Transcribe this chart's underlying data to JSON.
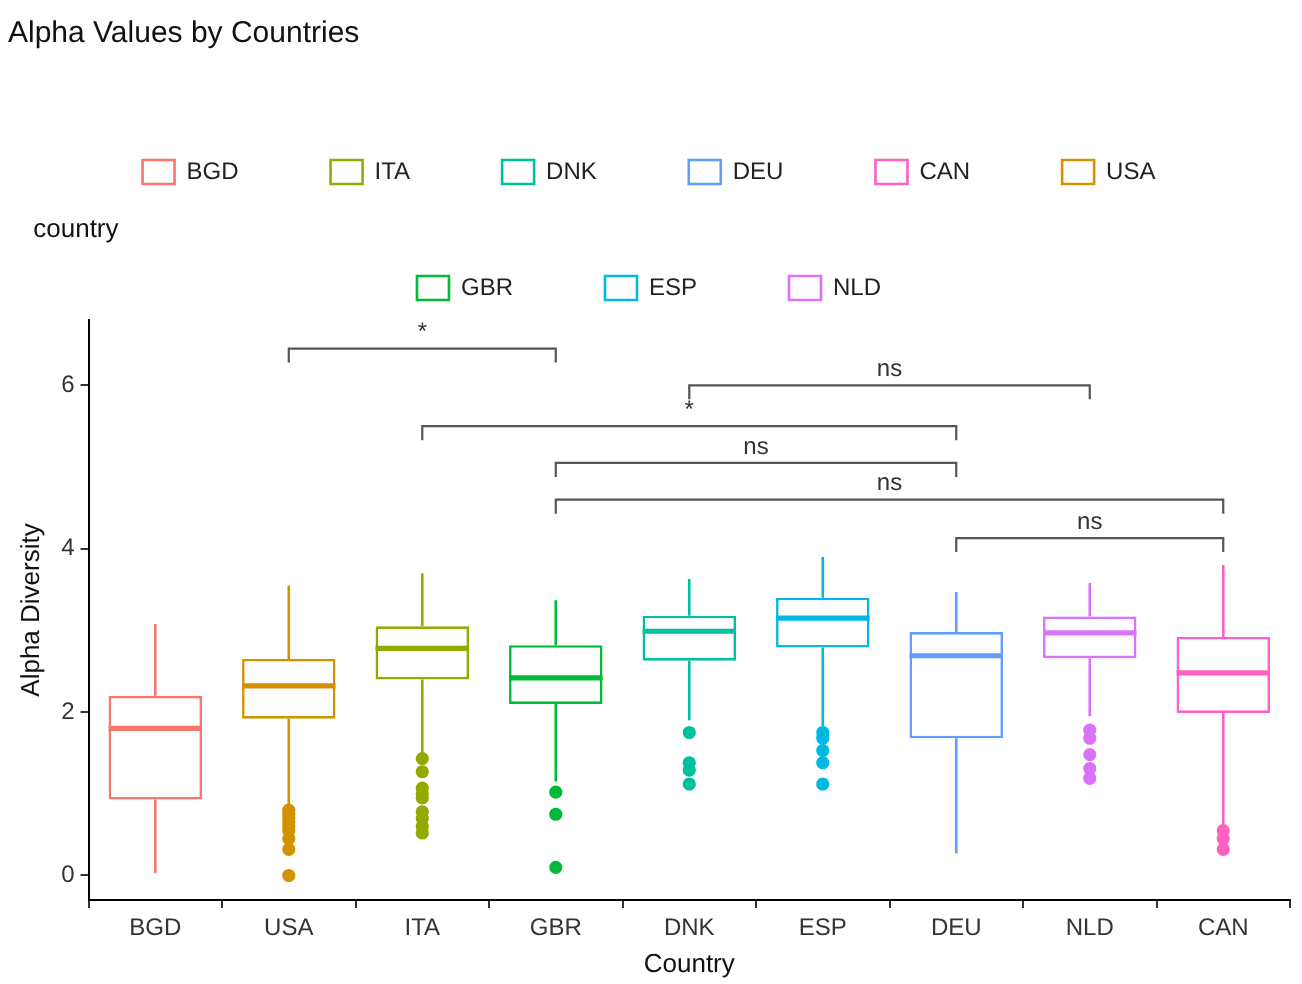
{
  "chart_data": {
    "type": "box",
    "title": "Alpha Values by Countries",
    "xlabel": "Country",
    "ylabel": "Alpha Diversity",
    "legend_title": "country",
    "legend": "top",
    "grid": false,
    "categories": [
      "BGD",
      "USA",
      "ITA",
      "GBR",
      "DNK",
      "ESP",
      "DEU",
      "NLD",
      "CAN"
    ],
    "series": [
      {
        "name": "BGD",
        "color": "#f8766d",
        "boxes": [
          {
            "low": 0.03,
            "q1": 0.93,
            "median": 1.8,
            "q3": 2.2,
            "high": 3.08
          },
          null,
          null,
          null,
          null,
          null,
          null,
          null,
          null
        ]
      },
      {
        "name": "USA",
        "color": "#d39200",
        "boxes": [
          null,
          {
            "low": 0.85,
            "q1": 1.92,
            "median": 2.32,
            "q3": 2.65,
            "high": 3.55,
            "outliers": [
              0.8,
              0.75,
              0.7,
              0.65,
              0.6,
              0.55,
              0.45,
              0.32,
              0.0
            ]
          },
          null,
          null,
          null,
          null,
          null,
          null,
          null
        ]
      },
      {
        "name": "ITA",
        "color": "#93aa00",
        "boxes": [
          null,
          null,
          {
            "low": 1.5,
            "q1": 2.4,
            "median": 2.78,
            "q3": 3.05,
            "high": 3.7,
            "outliers": [
              1.43,
              1.27,
              1.07,
              1.0,
              0.95,
              0.78,
              0.7,
              0.6,
              0.52
            ]
          },
          null,
          null,
          null,
          null,
          null,
          null
        ]
      },
      {
        "name": "GBR",
        "color": "#00ba38",
        "boxes": [
          null,
          null,
          null,
          {
            "low": 1.15,
            "q1": 2.1,
            "median": 2.42,
            "q3": 2.82,
            "high": 3.37,
            "outliers": [
              1.02,
              0.75,
              0.1
            ]
          },
          null,
          null,
          null,
          null,
          null
        ]
      },
      {
        "name": "DNK",
        "color": "#00c19f",
        "boxes": [
          null,
          null,
          null,
          null,
          {
            "low": 1.9,
            "q1": 2.63,
            "median": 2.99,
            "q3": 3.18,
            "high": 3.63,
            "outliers": [
              1.75,
              1.38,
              1.29,
              1.12
            ]
          },
          null,
          null,
          null,
          null
        ]
      },
      {
        "name": "ESP",
        "color": "#00b9e3",
        "boxes": [
          null,
          null,
          null,
          null,
          null,
          {
            "low": 1.83,
            "q1": 2.79,
            "median": 3.15,
            "q3": 3.4,
            "high": 3.9,
            "outliers": [
              1.75,
              1.68,
              1.53,
              1.38,
              1.12
            ]
          },
          null,
          null,
          null
        ]
      },
      {
        "name": "DEU",
        "color": "#619cff",
        "boxes": [
          null,
          null,
          null,
          null,
          null,
          null,
          {
            "low": 0.27,
            "q1": 1.68,
            "median": 2.69,
            "q3": 2.98,
            "high": 3.47
          },
          null,
          null
        ]
      },
      {
        "name": "NLD",
        "color": "#db72fb",
        "boxes": [
          null,
          null,
          null,
          null,
          null,
          null,
          null,
          {
            "low": 1.95,
            "q1": 2.66,
            "median": 2.97,
            "q3": 3.17,
            "high": 3.58,
            "outliers": [
              1.78,
              1.68,
              1.48,
              1.31,
              1.19
            ]
          },
          null
        ]
      },
      {
        "name": "CAN",
        "color": "#ff61c3",
        "boxes": [
          null,
          null,
          null,
          null,
          null,
          null,
          null,
          null,
          {
            "low": 0.62,
            "q1": 1.99,
            "median": 2.48,
            "q3": 2.92,
            "high": 3.8,
            "outliers": [
              0.55,
              0.45,
              0.32
            ]
          }
        ]
      }
    ],
    "ylim": [
      -0.3,
      6.8
    ],
    "yticks": [
      0,
      2,
      4,
      6
    ],
    "annotations": [
      "*",
      "ns",
      "*",
      "ns",
      "ns",
      "ns"
    ]
  }
}
